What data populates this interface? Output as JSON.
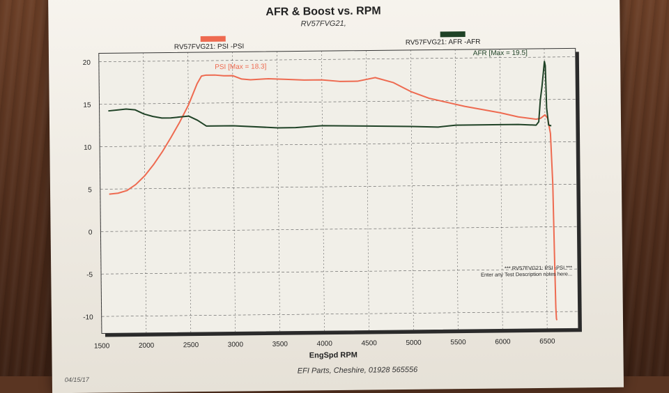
{
  "page": {
    "title": "AFR & Boost vs. RPM",
    "subtitle": "RV57FVG21,",
    "footer": "EFI Parts, Cheshire, 01928 565556",
    "date_partial": "04/15/17"
  },
  "legend": [
    {
      "label": "RV57FVG21: PSI   -PSI",
      "color": "#ee6a50"
    },
    {
      "label": "RV57FVG21: AFR   -AFR",
      "color": "#1f4226"
    }
  ],
  "annotations": {
    "psi_max": "PSI    [Max = 18.3]",
    "afr_max": "AFR    [Max = 19.5]",
    "note_line1": "***  RV57FVG21: PSI   -PSI   ***",
    "note_line2": "Enter any Test Description notes here..."
  },
  "colors": {
    "psi": "#ee6a50",
    "afr": "#1f4226",
    "plot_bg": "#f1efe8",
    "grid": "#555555"
  },
  "chart_data": {
    "type": "line",
    "title": "AFR & Boost vs. RPM",
    "subtitle": "RV57FVG21,",
    "xlabel": "EngSpd RPM",
    "ylabel": "",
    "xlim": [
      1500,
      6850
    ],
    "ylim": [
      -12,
      21
    ],
    "x_ticks": [
      1500,
      2000,
      2500,
      3000,
      3500,
      4000,
      4500,
      5000,
      5500,
      6000,
      6500
    ],
    "y_ticks": [
      -10,
      -5,
      0,
      5,
      10,
      15,
      20
    ],
    "grid": true,
    "series": [
      {
        "name": "RV57FVG21: PSI -PSI",
        "color": "#ee6a50",
        "x": [
          1600,
          1700,
          1800,
          1900,
          2000,
          2100,
          2200,
          2300,
          2400,
          2500,
          2600,
          2650,
          2700,
          2800,
          2900,
          3000,
          3100,
          3200,
          3400,
          3600,
          3800,
          4000,
          4200,
          4400,
          4600,
          4800,
          5000,
          5200,
          5400,
          5600,
          5800,
          6000,
          6200,
          6400,
          6450,
          6500,
          6530,
          6560,
          6580,
          6590,
          6600,
          6605,
          6610
        ],
        "y": [
          4.4,
          4.5,
          4.8,
          5.5,
          6.5,
          7.8,
          9.3,
          11.0,
          12.8,
          14.8,
          17.3,
          18.2,
          18.3,
          18.3,
          18.2,
          18.2,
          17.8,
          17.7,
          17.8,
          17.7,
          17.6,
          17.6,
          17.4,
          17.4,
          17.8,
          17.2,
          16.1,
          15.3,
          14.8,
          14.3,
          13.9,
          13.5,
          13.0,
          12.7,
          12.8,
          13.2,
          12.8,
          11.0,
          5.0,
          -3.0,
          -9.5,
          -10.8,
          -11.0
        ]
      },
      {
        "name": "RV57FVG21: AFR -AFR",
        "color": "#1f4226",
        "x": [
          1600,
          1700,
          1800,
          1900,
          2000,
          2100,
          2200,
          2300,
          2400,
          2500,
          2600,
          2700,
          3000,
          3500,
          3700,
          4000,
          4500,
          5000,
          5300,
          5500,
          6000,
          6200,
          6400,
          6430,
          6450,
          6470,
          6490,
          6500,
          6510,
          6520,
          6540,
          6570
        ],
        "y": [
          14.2,
          14.3,
          14.4,
          14.3,
          13.8,
          13.5,
          13.3,
          13.3,
          13.4,
          13.5,
          13.0,
          12.3,
          12.3,
          12.0,
          12.0,
          12.2,
          12.1,
          12.0,
          11.9,
          12.1,
          12.1,
          12.1,
          12.0,
          12.4,
          15.0,
          16.5,
          18.5,
          19.5,
          19.0,
          14.0,
          12.0,
          11.9
        ]
      }
    ]
  }
}
